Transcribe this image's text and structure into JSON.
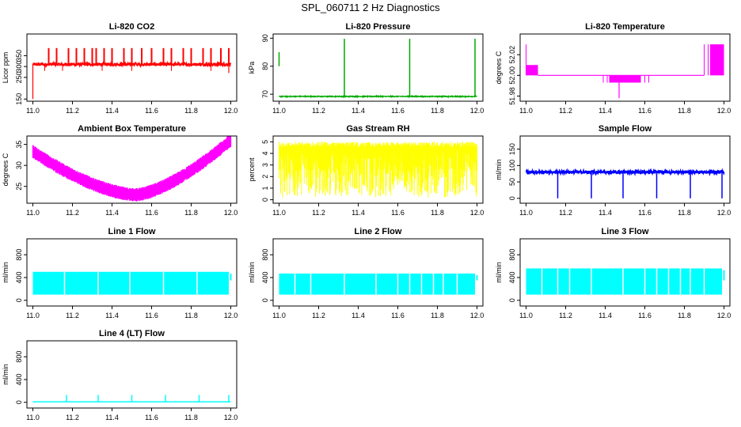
{
  "page_title": "SPL_060711  2 Hz Diagnostics",
  "chart_data": [
    {
      "type": "line",
      "title": "Li-820 CO2",
      "ylabel": "Licor ppm",
      "color": "#ff0000",
      "xlim": [
        10.97,
        12.03
      ],
      "ylim": [
        140,
        450
      ],
      "xticks": [
        "11.0",
        "11.2",
        "11.4",
        "11.6",
        "11.8",
        "12.0"
      ],
      "yticks": [
        {
          "v": 150,
          "label": "150"
        },
        {
          "v": 250,
          "label": "250"
        },
        {
          "v": 300,
          "label": "300"
        },
        {
          "v": 350,
          "label": "350"
        }
      ],
      "pattern": "co2",
      "params": {
        "base": 310,
        "spike_top": 385,
        "spike_x": [
          11.08,
          11.12,
          11.18,
          11.22,
          11.26,
          11.3,
          11.32,
          11.36,
          11.4,
          11.46,
          11.5,
          11.55,
          11.6,
          11.66,
          11.7,
          11.76,
          11.8,
          11.86,
          11.9,
          11.95,
          11.99
        ]
      }
    },
    {
      "type": "line",
      "title": "Li-820 Pressure",
      "ylabel": "kPa",
      "color": "#00aa00",
      "xlim": [
        10.97,
        12.03
      ],
      "ylim": [
        67.5,
        91.5
      ],
      "xticks": [
        "11.0",
        "11.2",
        "11.4",
        "11.6",
        "11.8",
        "12.0"
      ],
      "yticks": [
        {
          "v": 70,
          "label": "70"
        },
        {
          "v": 80,
          "label": "80"
        },
        {
          "v": 90,
          "label": "90"
        }
      ],
      "pattern": "pressure",
      "params": {
        "base": 69.2,
        "spike_top": 89.8,
        "spike_x": [
          11.33,
          11.66,
          11.99
        ],
        "start_val": 83
      }
    },
    {
      "type": "area",
      "title": "Li-820 Temperature",
      "ylabel": "degrees C",
      "color": "#ff00ff",
      "xlim": [
        10.97,
        12.03
      ],
      "ylim": [
        51.975,
        52.04
      ],
      "xticks": [
        "11.0",
        "11.2",
        "11.4",
        "11.6",
        "11.8",
        "12.0"
      ],
      "yticks": [
        {
          "v": 51.98,
          "label": "51.98"
        },
        {
          "v": 52.0,
          "label": "52.00"
        },
        {
          "v": 52.02,
          "label": "52.02"
        }
      ],
      "pattern": "temperature",
      "params": {
        "base": 52.0
      }
    },
    {
      "type": "line",
      "title": "Ambient Box Temperature",
      "ylabel": "degrees C",
      "color": "#ff00ff",
      "xlim": [
        10.97,
        12.03
      ],
      "ylim": [
        21,
        37
      ],
      "xticks": [
        "11.0",
        "11.2",
        "11.4",
        "11.6",
        "11.8",
        "12.0"
      ],
      "yticks": [
        {
          "v": 25,
          "label": "25"
        },
        {
          "v": 30,
          "label": "30"
        },
        {
          "v": 35,
          "label": "35"
        }
      ],
      "pattern": "ambient",
      "params": {
        "start": 33.3,
        "min": 23.0,
        "min_x": 11.52,
        "end": 36.0
      }
    },
    {
      "type": "area",
      "title": "Gas Stream RH",
      "ylabel": "percent",
      "color": "#ffff00",
      "xlim": [
        10.97,
        12.03
      ],
      "ylim": [
        -0.3,
        5.5
      ],
      "xticks": [
        "11.0",
        "11.2",
        "11.4",
        "11.6",
        "11.8",
        "12.0"
      ],
      "yticks": [
        {
          "v": 0,
          "label": "0"
        },
        {
          "v": 1,
          "label": "1"
        },
        {
          "v": 2,
          "label": "2"
        },
        {
          "v": 3,
          "label": "3"
        },
        {
          "v": 4,
          "label": "4"
        },
        {
          "v": 5,
          "label": "5"
        }
      ],
      "pattern": "rh",
      "params": {
        "top": 5.0,
        "bottom": 0.2
      }
    },
    {
      "type": "line",
      "title": "Sample Flow",
      "ylabel": "ml/min",
      "color": "#0000ff",
      "xlim": [
        10.97,
        12.03
      ],
      "ylim": [
        -15,
        190
      ],
      "xticks": [
        "11.0",
        "11.2",
        "11.4",
        "11.6",
        "11.8",
        "12.0"
      ],
      "yticks": [
        {
          "v": 0,
          "label": "0"
        },
        {
          "v": 50,
          "label": "50"
        },
        {
          "v": 100,
          "label": "100"
        },
        {
          "v": 150,
          "label": "150"
        }
      ],
      "pattern": "sample",
      "params": {
        "base": 80,
        "dip_x": [
          11.16,
          11.33,
          11.49,
          11.66,
          11.83,
          11.99
        ],
        "dip_val": 0
      }
    },
    {
      "type": "area",
      "title": "Line 1 Flow",
      "ylabel": "ml/min",
      "color": "#00ffff",
      "xlim": [
        10.97,
        12.03
      ],
      "ylim": [
        -100,
        1080
      ],
      "xticks": [
        "11.0",
        "11.2",
        "11.4",
        "11.6",
        "11.8",
        "12.0"
      ],
      "yticks": [
        {
          "v": 0,
          "label": "0"
        },
        {
          "v": 400,
          "label": "400"
        },
        {
          "v": 800,
          "label": "800"
        }
      ],
      "pattern": "block",
      "params": {
        "top": 500,
        "bottom": 100,
        "gaps": [
          11.16,
          11.33,
          11.49,
          11.66,
          11.83
        ]
      }
    },
    {
      "type": "area",
      "title": "Line 2 Flow",
      "ylabel": "ml/min",
      "color": "#00ffff",
      "xlim": [
        10.97,
        12.03
      ],
      "ylim": [
        -100,
        1080
      ],
      "xticks": [
        "11.0",
        "11.2",
        "11.4",
        "11.6",
        "11.8",
        "12.0"
      ],
      "yticks": [
        {
          "v": 0,
          "label": "0"
        },
        {
          "v": 400,
          "label": "400"
        },
        {
          "v": 800,
          "label": "800"
        }
      ],
      "pattern": "block",
      "params": {
        "top": 470,
        "bottom": 100,
        "gaps": [
          11.08,
          11.16,
          11.33,
          11.49,
          11.6,
          11.66,
          11.72,
          11.78,
          11.83,
          11.9
        ]
      }
    },
    {
      "type": "area",
      "title": "Line 3 Flow",
      "ylabel": "ml/min",
      "color": "#00ffff",
      "xlim": [
        10.97,
        12.03
      ],
      "ylim": [
        -100,
        1080
      ],
      "xticks": [
        "11.0",
        "11.2",
        "11.4",
        "11.6",
        "11.8",
        "12.0"
      ],
      "yticks": [
        {
          "v": 0,
          "label": "0"
        },
        {
          "v": 400,
          "label": "400"
        },
        {
          "v": 800,
          "label": "800"
        }
      ],
      "pattern": "block",
      "params": {
        "top": 560,
        "bottom": 100,
        "gaps": [
          11.08,
          11.16,
          11.22,
          11.33,
          11.49,
          11.6,
          11.66,
          11.72,
          11.78,
          11.83,
          11.9
        ]
      }
    },
    {
      "type": "line",
      "title": "Line 4 (LT) Flow",
      "ylabel": "ml/min",
      "color": "#00ffff",
      "xlim": [
        10.97,
        12.03
      ],
      "ylim": [
        -100,
        1080
      ],
      "xticks": [
        "11.0",
        "11.2",
        "11.4",
        "11.6",
        "11.8",
        "12.0"
      ],
      "yticks": [
        {
          "v": 0,
          "label": "0"
        },
        {
          "v": 400,
          "label": "400"
        },
        {
          "v": 800,
          "label": "800"
        }
      ],
      "pattern": "lt",
      "params": {
        "base": 10,
        "spike_x": [
          11.17,
          11.33,
          11.5,
          11.67,
          11.84,
          11.99
        ],
        "spike_top": 130
      }
    }
  ]
}
